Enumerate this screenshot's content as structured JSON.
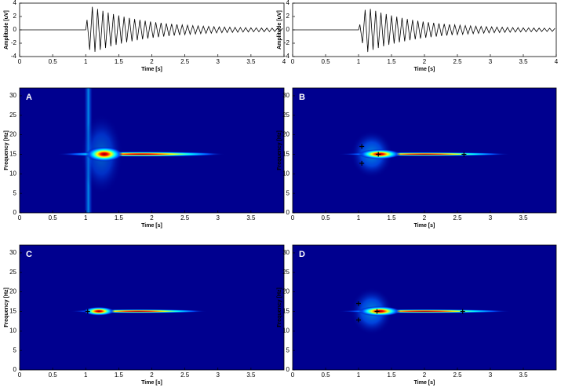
{
  "chart_data": [
    {
      "type": "line",
      "xlabel": "Time [s]",
      "ylabel": "Amplitude [uV]",
      "color": "#000000",
      "xlim": [
        0,
        4
      ],
      "xticks": [
        0,
        0.5,
        1,
        1.5,
        2,
        2.5,
        3,
        3.5,
        4
      ],
      "ylim": [
        -4,
        4
      ],
      "yticks": [
        -4,
        -2,
        0,
        2,
        4
      ],
      "x": [
        0,
        1,
        1.02,
        1.06,
        1.1,
        1.14,
        1.18,
        1.22,
        1.26,
        1.3,
        1.34,
        1.38,
        1.42,
        1.46,
        1.5,
        1.54,
        1.58,
        1.62,
        1.66,
        1.7,
        1.74,
        1.78,
        1.82,
        1.86,
        1.9,
        1.94,
        1.98,
        2.02,
        2.06,
        2.1,
        2.14,
        2.18,
        2.22,
        2.26,
        2.3,
        2.34,
        2.38,
        2.42,
        2.46,
        2.5,
        2.54,
        2.58,
        2.62,
        2.66,
        2.7,
        2.74,
        2.78,
        2.82,
        2.86,
        2.9,
        2.94,
        2.98,
        3.02,
        3.06,
        3.1,
        3.14,
        3.18,
        3.22,
        3.26,
        3.3,
        3.34,
        3.38,
        3.42,
        3.46,
        3.5,
        3.54,
        3.58,
        3.62,
        3.66,
        3.7,
        3.74,
        3.78,
        3.82,
        3.86,
        3.9,
        3.94,
        3.98
      ],
      "values": [
        0,
        0,
        1.5,
        -3.0,
        3.45,
        -3.29,
        3.13,
        -2.99,
        2.85,
        -2.72,
        2.59,
        -2.47,
        2.36,
        -2.25,
        2.15,
        -2.05,
        1.96,
        -1.87,
        1.79,
        -1.71,
        1.63,
        -1.56,
        1.49,
        -1.42,
        1.36,
        -1.3,
        1.25,
        -1.19,
        1.14,
        -1.09,
        1.05,
        -1.0,
        0.96,
        -0.92,
        0.88,
        -0.85,
        0.81,
        -0.78,
        0.75,
        -0.72,
        0.69,
        -0.67,
        0.64,
        -0.62,
        0.6,
        -0.57,
        0.55,
        -0.53,
        0.51,
        -0.5,
        0.48,
        -0.46,
        0.45,
        -0.43,
        0.42,
        -0.41,
        0.39,
        -0.38,
        0.37,
        -0.36,
        0.35,
        -0.34,
        0.33,
        -0.32,
        0.31,
        -0.3,
        0.3,
        -0.29,
        0.28,
        -0.28,
        0.27,
        -0.26,
        0.26,
        -0.25,
        0.25,
        -0.24,
        0.24
      ]
    },
    {
      "type": "line",
      "xlabel": "Time [s]",
      "ylabel": "Amplitude [uV]",
      "color": "#000000",
      "xlim": [
        0,
        4
      ],
      "xticks": [
        0,
        0.5,
        1,
        1.5,
        2,
        2.5,
        3,
        3.5,
        4
      ],
      "ylim": [
        -4,
        4
      ],
      "yticks": [
        -4,
        -2,
        0,
        2,
        4
      ],
      "x": [
        0,
        1,
        1.02,
        1.06,
        1.1,
        1.14,
        1.18,
        1.22,
        1.26,
        1.3,
        1.34,
        1.38,
        1.42,
        1.46,
        1.5,
        1.54,
        1.58,
        1.62,
        1.66,
        1.7,
        1.74,
        1.78,
        1.82,
        1.86,
        1.9,
        1.94,
        1.98,
        2.02,
        2.06,
        2.1,
        2.14,
        2.18,
        2.22,
        2.26,
        2.3,
        2.34,
        2.38,
        2.42,
        2.46,
        2.5,
        2.54,
        2.58,
        2.62,
        2.66,
        2.7,
        2.74,
        2.78,
        2.82,
        2.86,
        2.9,
        2.94,
        2.98,
        3.02,
        3.06,
        3.1,
        3.14,
        3.18,
        3.22,
        3.26,
        3.3,
        3.34,
        3.38,
        3.42,
        3.46,
        3.5,
        3.54,
        3.58,
        3.62,
        3.66,
        3.7,
        3.74,
        3.78,
        3.82,
        3.86,
        3.9,
        3.94,
        3.98
      ],
      "values": [
        0,
        0,
        0.8,
        -2.0,
        3.0,
        -3.3,
        3.13,
        -2.99,
        2.85,
        -2.72,
        2.59,
        -2.47,
        2.36,
        -2.25,
        2.15,
        -2.05,
        1.96,
        -1.87,
        1.79,
        -1.71,
        1.63,
        -1.56,
        1.49,
        -1.42,
        1.36,
        -1.3,
        1.25,
        -1.19,
        1.14,
        -1.09,
        1.05,
        -1.0,
        0.96,
        -0.92,
        0.88,
        -0.85,
        0.81,
        -0.78,
        0.75,
        -0.72,
        0.69,
        -0.67,
        0.64,
        -0.62,
        0.6,
        -0.57,
        0.55,
        -0.53,
        0.51,
        -0.5,
        0.48,
        -0.46,
        0.45,
        -0.43,
        0.42,
        -0.41,
        0.39,
        -0.38,
        0.37,
        -0.36,
        0.35,
        -0.34,
        0.33,
        -0.32,
        0.31,
        -0.3,
        0.3,
        -0.29,
        0.28,
        -0.28,
        0.27,
        -0.26,
        0.26,
        -0.25,
        0.25,
        -0.24,
        0.24
      ]
    },
    {
      "type": "heatmap",
      "title": "A",
      "xlabel": "Time [s]",
      "ylabel": "Frequency [Hz]",
      "xlim": [
        0,
        4
      ],
      "xticks": [
        0,
        0.5,
        1,
        1.5,
        2,
        2.5,
        3,
        3.5
      ],
      "ylim": [
        0,
        32
      ],
      "yticks": [
        0,
        5,
        10,
        15,
        20,
        25,
        30
      ],
      "points": {
        "x": [],
        "y": []
      }
    },
    {
      "type": "heatmap",
      "title": "B",
      "xlabel": "Time [s]",
      "ylabel": "Frequency [Hz]",
      "xlim": [
        0,
        4
      ],
      "xticks": [
        0,
        0.5,
        1,
        1.5,
        2,
        2.5,
        3,
        3.5
      ],
      "ylim": [
        0,
        32
      ],
      "yticks": [
        0,
        5,
        10,
        15,
        20,
        25,
        30
      ],
      "points": {
        "x": [
          1.05,
          1.05,
          1.3,
          2.6
        ],
        "y": [
          17,
          12.7,
          15,
          15
        ]
      }
    },
    {
      "type": "heatmap",
      "title": "C",
      "xlabel": "Time [s]",
      "ylabel": "Frequency [Hz]",
      "xlim": [
        0,
        4
      ],
      "xticks": [
        0,
        0.5,
        1,
        1.5,
        2,
        2.5,
        3,
        3.5
      ],
      "ylim": [
        0,
        32
      ],
      "yticks": [
        0,
        5,
        10,
        15,
        20,
        25,
        30
      ],
      "points": {
        "x": [
          1.03
        ],
        "y": [
          15
        ]
      }
    },
    {
      "type": "heatmap",
      "title": "D",
      "xlabel": "Time [s]",
      "ylabel": "Frequency [Hz]",
      "xlim": [
        0,
        4
      ],
      "xticks": [
        0,
        0.5,
        1,
        1.5,
        2,
        2.5,
        3,
        3.5
      ],
      "ylim": [
        0,
        32
      ],
      "yticks": [
        0,
        5,
        10,
        15,
        20,
        25,
        30
      ],
      "points": {
        "x": [
          1.0,
          1.0,
          1.28,
          2.58
        ],
        "y": [
          17,
          12.8,
          15,
          15
        ]
      }
    }
  ]
}
